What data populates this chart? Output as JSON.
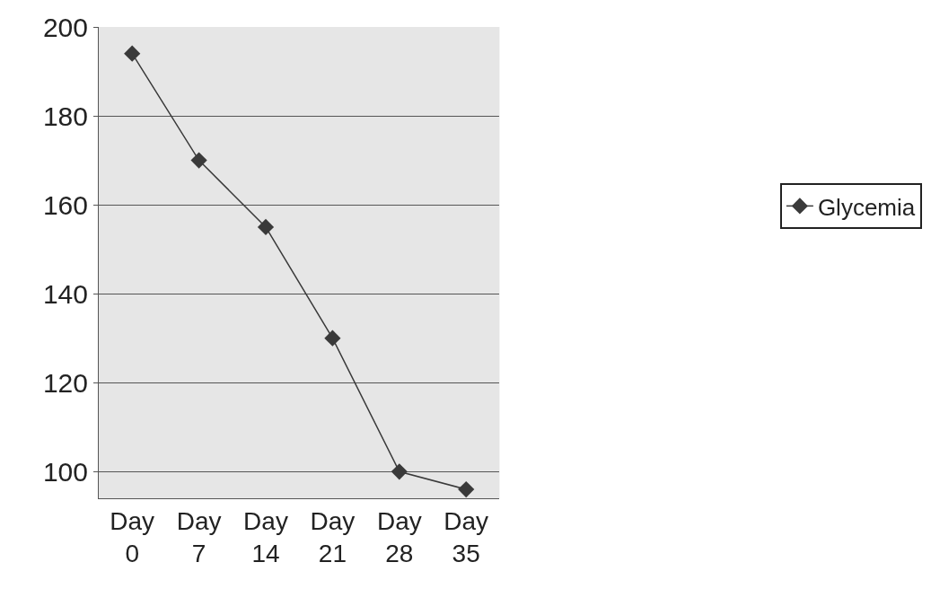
{
  "chart_data": {
    "type": "line",
    "categories": [
      "Day 0",
      "Day 7",
      "Day 14",
      "Day 21",
      "Day 28",
      "Day 35"
    ],
    "series": [
      {
        "name": "Glycemia",
        "color": "#3a3a3a",
        "values": [
          194,
          170,
          155,
          130,
          100,
          96
        ]
      }
    ],
    "ylim": [
      94,
      200
    ],
    "yticks": [
      100,
      120,
      140,
      160,
      180,
      200
    ],
    "grid": "y",
    "legend": "right",
    "marker": "diamond",
    "line_style": "solid"
  }
}
